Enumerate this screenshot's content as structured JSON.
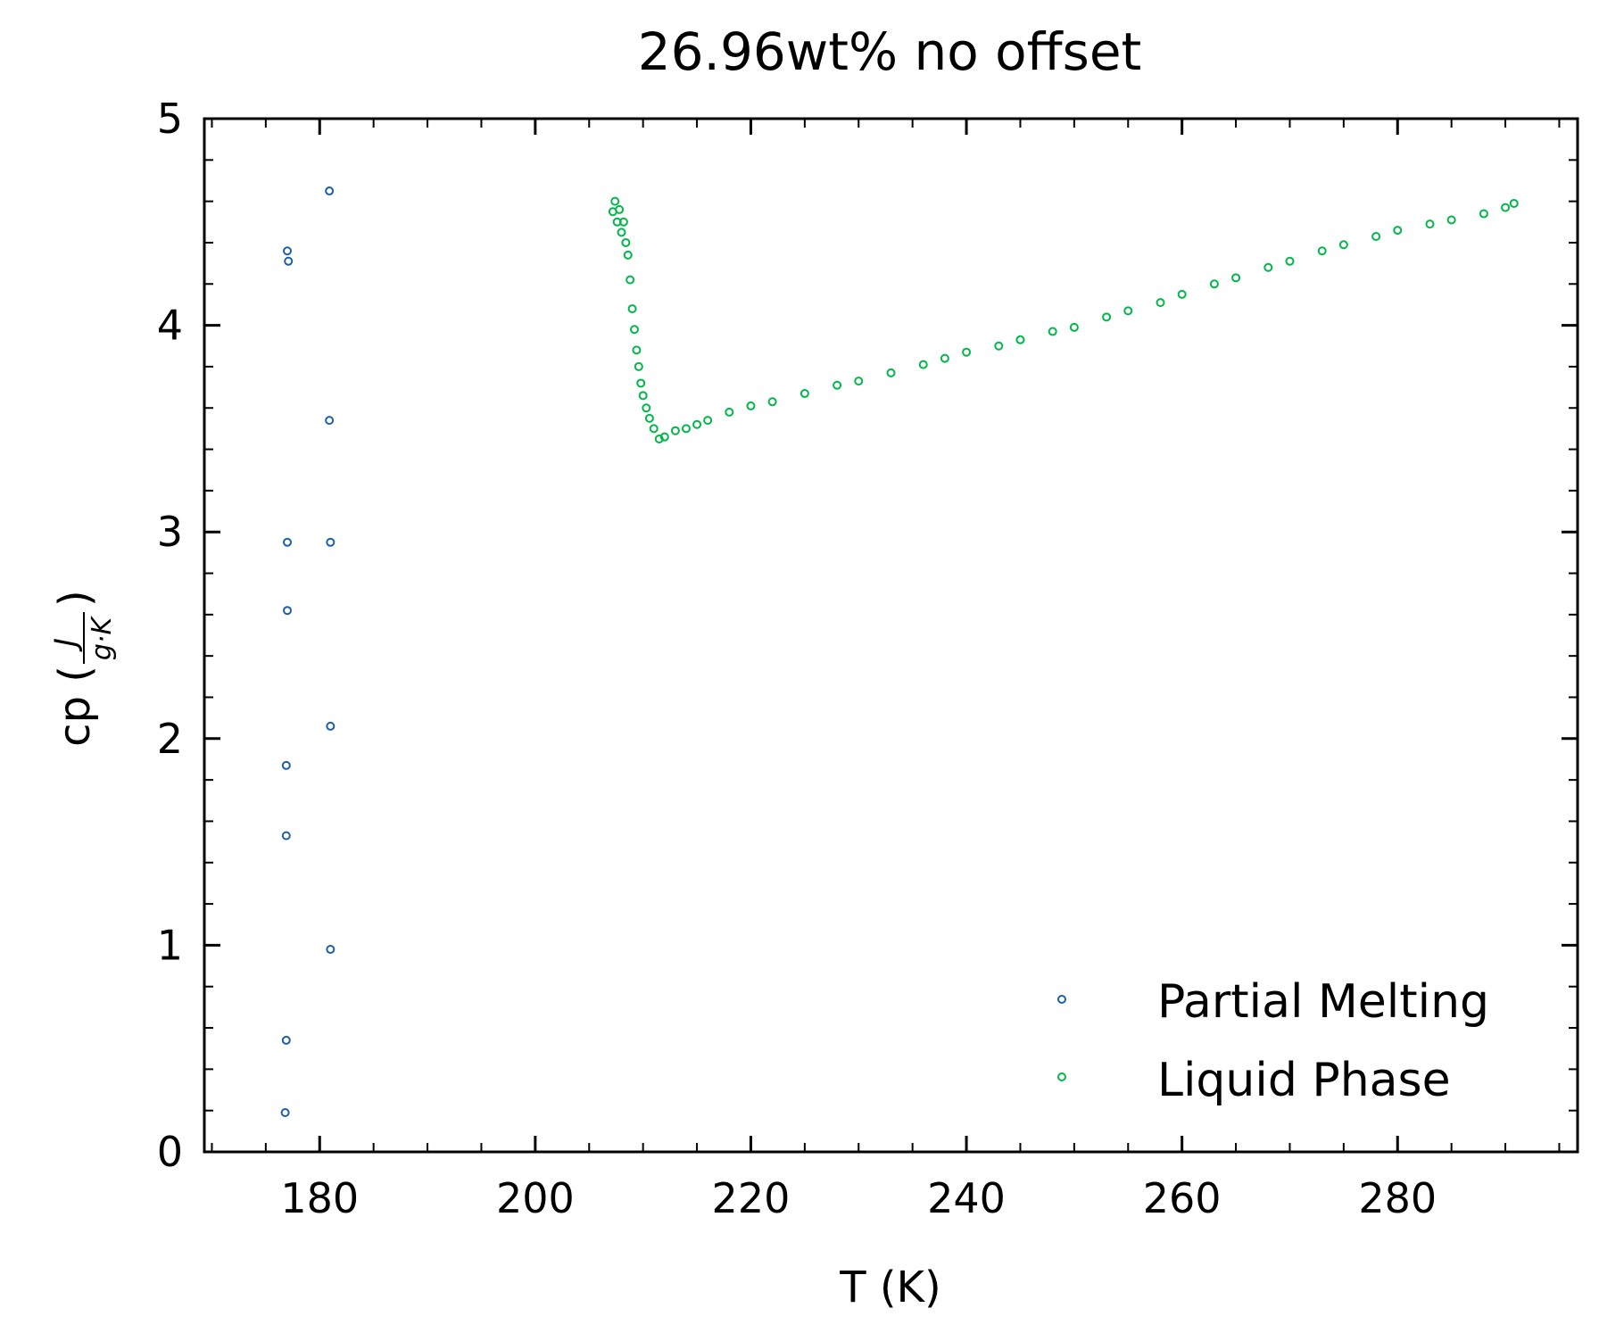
{
  "chart_data": {
    "type": "scatter",
    "title": "26.96wt% no offset",
    "xlabel": "T (K)",
    "ylabel": {
      "main": "cp (",
      "numerator": "J",
      "denominator": "g·K",
      "close": ")"
    },
    "xlim": [
      169.3,
      296.7
    ],
    "ylim": [
      0,
      5
    ],
    "xticks": [
      180,
      200,
      220,
      240,
      260,
      280
    ],
    "yticks": [
      0,
      1,
      2,
      3,
      4,
      5
    ],
    "xtick_labels": [
      "180",
      "200",
      "220",
      "240",
      "260",
      "280"
    ],
    "ytick_labels": [
      "0",
      "1",
      "2",
      "3",
      "4",
      "5"
    ],
    "x_minor_step": 5,
    "y_minor_step": 0.2,
    "grid": false,
    "legend_position": "lower-right",
    "series": [
      {
        "name": "Partial Melting",
        "color": "#1f5fa8",
        "marker": "open-circle",
        "points": [
          [
            177.0,
            4.36
          ],
          [
            177.1,
            4.31
          ],
          [
            177.0,
            2.95
          ],
          [
            177.0,
            2.62
          ],
          [
            176.9,
            1.87
          ],
          [
            176.9,
            1.53
          ],
          [
            176.9,
            0.54
          ],
          [
            176.8,
            0.19
          ],
          [
            180.9,
            4.65
          ],
          [
            180.9,
            3.54
          ],
          [
            181.0,
            2.95
          ],
          [
            181.0,
            2.06
          ],
          [
            181.0,
            0.98
          ]
        ]
      },
      {
        "name": "Liquid Phase",
        "color": "#00b84a",
        "marker": "open-circle",
        "points": [
          [
            207.2,
            4.55
          ],
          [
            207.4,
            4.6
          ],
          [
            207.6,
            4.5
          ],
          [
            207.8,
            4.56
          ],
          [
            208.0,
            4.45
          ],
          [
            208.2,
            4.5
          ],
          [
            208.4,
            4.4
          ],
          [
            208.6,
            4.34
          ],
          [
            208.8,
            4.22
          ],
          [
            209.0,
            4.08
          ],
          [
            209.2,
            3.98
          ],
          [
            209.4,
            3.88
          ],
          [
            209.6,
            3.8
          ],
          [
            209.8,
            3.72
          ],
          [
            210.0,
            3.66
          ],
          [
            210.3,
            3.6
          ],
          [
            210.6,
            3.55
          ],
          [
            211.0,
            3.5
          ],
          [
            211.5,
            3.45
          ],
          [
            212.0,
            3.46
          ],
          [
            213.0,
            3.49
          ],
          [
            214.0,
            3.5
          ],
          [
            215.0,
            3.52
          ],
          [
            216.0,
            3.54
          ],
          [
            218.0,
            3.58
          ],
          [
            220.0,
            3.61
          ],
          [
            222.0,
            3.63
          ],
          [
            225.0,
            3.67
          ],
          [
            228.0,
            3.71
          ],
          [
            230.0,
            3.73
          ],
          [
            233.0,
            3.77
          ],
          [
            236.0,
            3.81
          ],
          [
            238.0,
            3.84
          ],
          [
            240.0,
            3.87
          ],
          [
            243.0,
            3.9
          ],
          [
            245.0,
            3.93
          ],
          [
            248.0,
            3.97
          ],
          [
            250.0,
            3.99
          ],
          [
            253.0,
            4.04
          ],
          [
            255.0,
            4.07
          ],
          [
            258.0,
            4.11
          ],
          [
            260.0,
            4.15
          ],
          [
            263.0,
            4.2
          ],
          [
            265.0,
            4.23
          ],
          [
            268.0,
            4.28
          ],
          [
            270.0,
            4.31
          ],
          [
            273.0,
            4.36
          ],
          [
            275.0,
            4.39
          ],
          [
            278.0,
            4.43
          ],
          [
            280.0,
            4.46
          ],
          [
            283.0,
            4.49
          ],
          [
            285.0,
            4.51
          ],
          [
            288.0,
            4.54
          ],
          [
            290.0,
            4.57
          ],
          [
            290.8,
            4.59
          ]
        ]
      }
    ]
  }
}
